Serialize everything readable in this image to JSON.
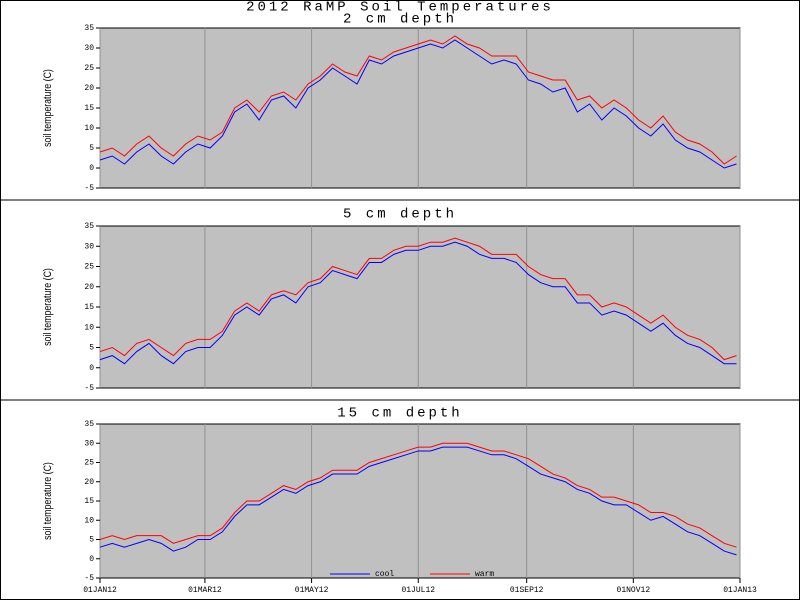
{
  "title": "2012 RaMP Soil Temperatures",
  "chart_data": [
    {
      "type": "line",
      "subtitle": "2 cm depth",
      "ylabel": "soil temperature (C)",
      "x": [
        0,
        7,
        14,
        21,
        28,
        35,
        42,
        49,
        56,
        63,
        70,
        77,
        84,
        91,
        98,
        105,
        112,
        119,
        126,
        133,
        140,
        147,
        154,
        161,
        168,
        175,
        182,
        189,
        196,
        203,
        210,
        217,
        224,
        231,
        238,
        245,
        252,
        259,
        266,
        273,
        280,
        287,
        294,
        301,
        308,
        315,
        322,
        329,
        336,
        343,
        350,
        357,
        364
      ],
      "xlim": [
        0,
        366
      ],
      "ylim": [
        -5,
        35
      ],
      "yticks": [
        -5,
        0,
        5,
        10,
        15,
        20,
        25,
        30,
        35
      ],
      "series": [
        {
          "color": "#0000ff",
          "values": [
            2,
            3,
            1,
            4,
            6,
            3,
            1,
            4,
            6,
            5,
            8,
            14,
            16,
            12,
            17,
            18,
            15,
            20,
            22,
            25,
            23,
            21,
            27,
            26,
            28,
            29,
            30,
            31,
            30,
            32,
            30,
            28,
            26,
            27,
            26,
            22,
            21,
            19,
            20,
            14,
            16,
            12,
            15,
            13,
            10,
            8,
            11,
            7,
            5,
            4,
            2,
            0,
            1
          ]
        },
        {
          "color": "#ff0000",
          "values": [
            4,
            5,
            3,
            6,
            8,
            5,
            3,
            6,
            8,
            7,
            9,
            15,
            17,
            14,
            18,
            19,
            17,
            21,
            23,
            26,
            24,
            23,
            28,
            27,
            29,
            30,
            31,
            32,
            31,
            33,
            31,
            30,
            28,
            28,
            28,
            24,
            23,
            22,
            22,
            17,
            18,
            15,
            17,
            15,
            12,
            10,
            13,
            9,
            7,
            6,
            4,
            1,
            3
          ]
        }
      ]
    },
    {
      "type": "line",
      "subtitle": "5 cm depth",
      "ylabel": "soil temperature (C)",
      "x": [
        0,
        7,
        14,
        21,
        28,
        35,
        42,
        49,
        56,
        63,
        70,
        77,
        84,
        91,
        98,
        105,
        112,
        119,
        126,
        133,
        140,
        147,
        154,
        161,
        168,
        175,
        182,
        189,
        196,
        203,
        210,
        217,
        224,
        231,
        238,
        245,
        252,
        259,
        266,
        273,
        280,
        287,
        294,
        301,
        308,
        315,
        322,
        329,
        336,
        343,
        350,
        357,
        364
      ],
      "xlim": [
        0,
        366
      ],
      "ylim": [
        -5,
        35
      ],
      "yticks": [
        -5,
        0,
        5,
        10,
        15,
        20,
        25,
        30,
        35
      ],
      "series": [
        {
          "color": "#0000ff",
          "values": [
            2,
            3,
            1,
            4,
            6,
            3,
            1,
            4,
            5,
            5,
            8,
            13,
            15,
            13,
            17,
            18,
            16,
            20,
            21,
            24,
            23,
            22,
            26,
            26,
            28,
            29,
            29,
            30,
            30,
            31,
            30,
            28,
            27,
            27,
            26,
            23,
            21,
            20,
            20,
            16,
            16,
            13,
            14,
            13,
            11,
            9,
            11,
            8,
            6,
            5,
            3,
            1,
            1
          ]
        },
        {
          "color": "#ff0000",
          "values": [
            4,
            5,
            3,
            6,
            7,
            5,
            3,
            6,
            7,
            7,
            9,
            14,
            16,
            14,
            18,
            19,
            18,
            21,
            22,
            25,
            24,
            23,
            27,
            27,
            29,
            30,
            30,
            31,
            31,
            32,
            31,
            30,
            28,
            28,
            28,
            25,
            23,
            22,
            22,
            18,
            18,
            15,
            16,
            15,
            13,
            11,
            13,
            10,
            8,
            7,
            5,
            2,
            3
          ]
        }
      ]
    },
    {
      "type": "line",
      "subtitle": "15 cm depth",
      "ylabel": "soil temperature (C)",
      "x": [
        0,
        7,
        14,
        21,
        28,
        35,
        42,
        49,
        56,
        63,
        70,
        77,
        84,
        91,
        98,
        105,
        112,
        119,
        126,
        133,
        140,
        147,
        154,
        161,
        168,
        175,
        182,
        189,
        196,
        203,
        210,
        217,
        224,
        231,
        238,
        245,
        252,
        259,
        266,
        273,
        280,
        287,
        294,
        301,
        308,
        315,
        322,
        329,
        336,
        343,
        350,
        357,
        364
      ],
      "xlim": [
        0,
        366
      ],
      "ylim": [
        -5,
        35
      ],
      "yticks": [
        -5,
        0,
        5,
        10,
        15,
        20,
        25,
        30,
        35
      ],
      "xticks": [
        {
          "value": 0,
          "label": "01JAN12"
        },
        {
          "value": 60,
          "label": "01MAR12"
        },
        {
          "value": 121,
          "label": "01MAY12"
        },
        {
          "value": 182,
          "label": "01JUL12"
        },
        {
          "value": 244,
          "label": "01SEP12"
        },
        {
          "value": 305,
          "label": "01NOV12"
        },
        {
          "value": 366,
          "label": "01JAN13"
        }
      ],
      "series": [
        {
          "name": "cool",
          "color": "#0000ff",
          "values": [
            3,
            4,
            3,
            4,
            5,
            4,
            2,
            3,
            5,
            5,
            7,
            11,
            14,
            14,
            16,
            18,
            17,
            19,
            20,
            22,
            22,
            22,
            24,
            25,
            26,
            27,
            28,
            28,
            29,
            29,
            29,
            28,
            27,
            27,
            26,
            24,
            22,
            21,
            20,
            18,
            17,
            15,
            14,
            14,
            12,
            10,
            11,
            9,
            7,
            6,
            4,
            2,
            1
          ]
        },
        {
          "name": "warm",
          "color": "#ff0000",
          "values": [
            5,
            6,
            5,
            6,
            6,
            6,
            4,
            5,
            6,
            6,
            8,
            12,
            15,
            15,
            17,
            19,
            18,
            20,
            21,
            23,
            23,
            23,
            25,
            26,
            27,
            28,
            29,
            29,
            30,
            30,
            30,
            29,
            28,
            28,
            27,
            26,
            24,
            22,
            21,
            19,
            18,
            16,
            16,
            15,
            14,
            12,
            12,
            11,
            9,
            8,
            6,
            4,
            3
          ]
        }
      ]
    }
  ]
}
